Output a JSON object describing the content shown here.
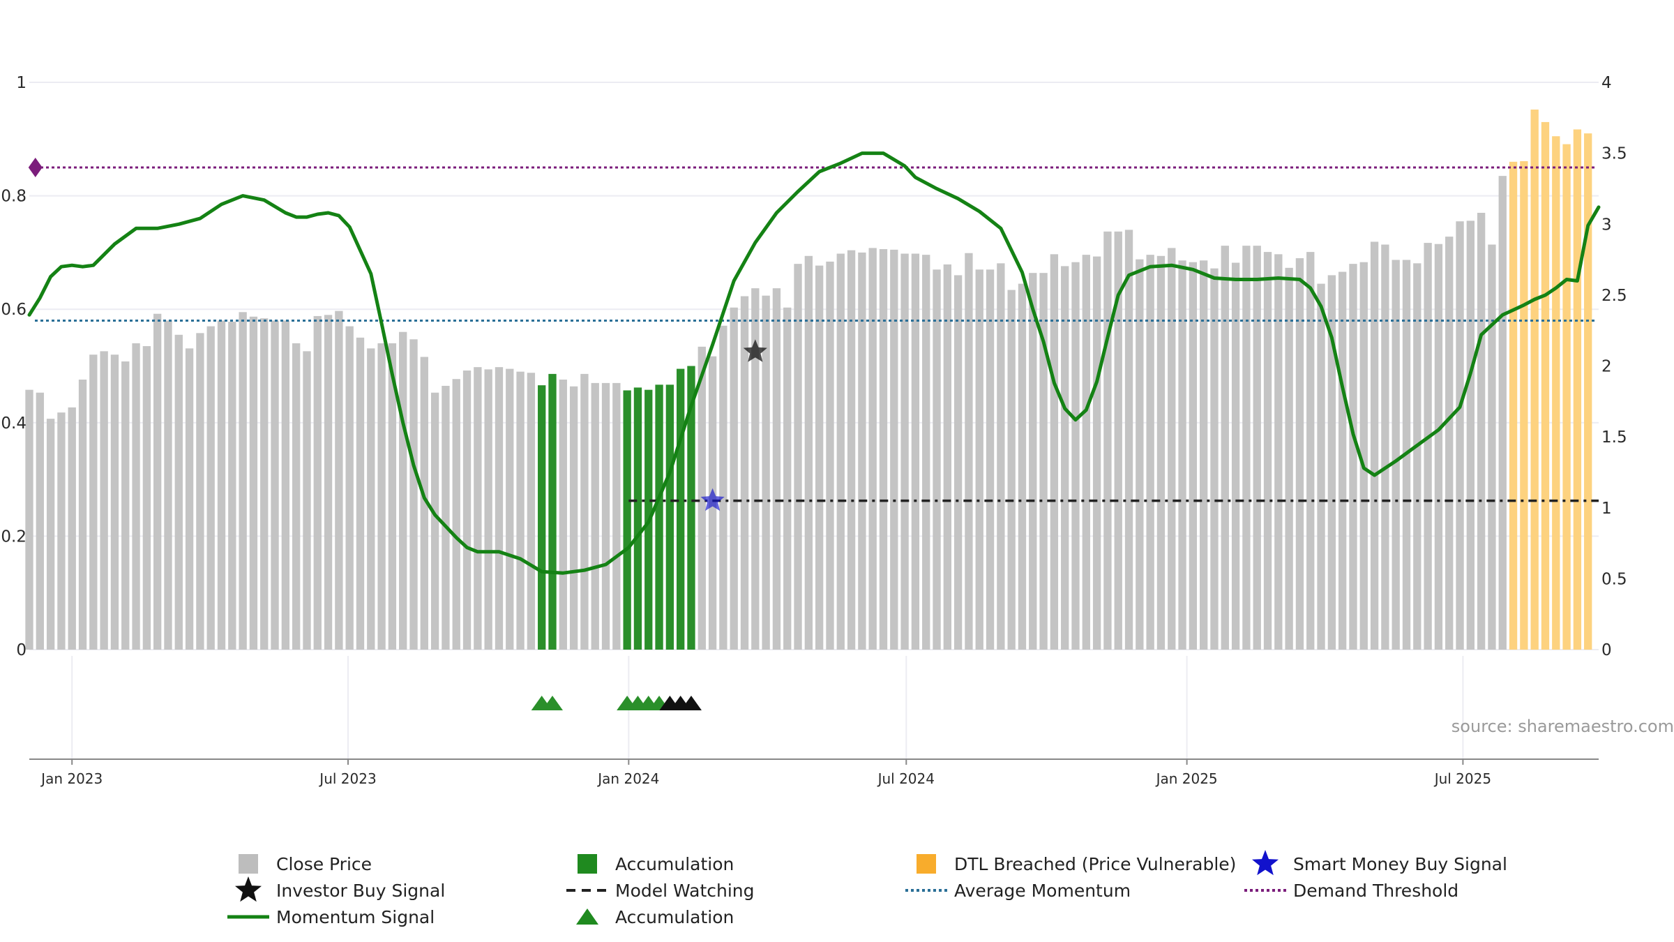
{
  "chart_data": {
    "type": "bar",
    "source": "source: sharemaestro.com",
    "colors": {
      "close_price": "#c4c4c4",
      "accumulation": "#2a8f2a",
      "dtl_breached": "#fdd27f",
      "momentum": "#148214",
      "average_momentum": "#2a6f97",
      "demand_threshold": "#7b1d7b",
      "model_watching": "#222222",
      "smart_money": "#1212cc",
      "investor": "#111111"
    },
    "y_left": {
      "ticks": [
        "0",
        "0.2",
        "0.4",
        "0.6",
        "0.8",
        "1"
      ],
      "ylim": [
        0,
        1
      ]
    },
    "y_right": {
      "ticks": [
        "0",
        "0.5",
        "1",
        "1.5",
        "2",
        "2.5",
        "3",
        "3.5",
        "4"
      ],
      "ylim": [
        0,
        4
      ]
    },
    "x_ticks": [
      {
        "label": "Jan 2023",
        "date": "2023-01-01"
      },
      {
        "label": "Jul 2023",
        "date": "2023-07-01"
      },
      {
        "label": "Jan 2024",
        "date": "2024-01-01"
      },
      {
        "label": "Jul 2024",
        "date": "2024-07-01"
      },
      {
        "label": "Jan 2025",
        "date": "2025-01-01"
      },
      {
        "label": "Jul 2025",
        "date": "2025-07-01"
      }
    ],
    "x_range": [
      "2022-12-04",
      "2025-09-28"
    ],
    "bars": {
      "start": "2022-12-04",
      "interval_days": 7,
      "values": [
        0.458,
        0.453,
        0.407,
        0.418,
        0.427,
        0.476,
        0.52,
        0.526,
        0.52,
        0.508,
        0.54,
        0.535,
        0.592,
        0.58,
        0.555,
        0.531,
        0.558,
        0.57,
        0.58,
        0.578,
        0.595,
        0.587,
        0.584,
        0.58,
        0.58,
        0.54,
        0.526,
        0.588,
        0.59,
        0.597,
        0.57,
        0.55,
        0.531,
        0.54,
        0.54,
        0.56,
        0.547,
        0.516,
        0.453,
        0.465,
        0.477,
        0.492,
        0.498,
        0.494,
        0.498,
        0.495,
        0.49,
        0.488,
        0.466,
        0.486,
        0.476,
        0.464,
        0.486,
        0.47,
        0.47,
        0.47,
        0.457,
        0.462,
        0.458,
        0.467,
        0.467,
        0.495,
        0.5,
        0.534,
        0.517,
        0.571,
        0.603,
        0.623,
        0.637,
        0.624,
        0.637,
        0.603,
        0.68,
        0.694,
        0.677,
        0.684,
        0.698,
        0.704,
        0.7,
        0.708,
        0.706,
        0.705,
        0.698,
        0.698,
        0.696,
        0.67,
        0.679,
        0.66,
        0.699,
        0.67,
        0.67,
        0.681,
        0.634,
        0.645,
        0.664,
        0.664,
        0.697,
        0.676,
        0.683,
        0.696,
        0.693,
        0.737,
        0.737,
        0.74,
        0.688,
        0.696,
        0.694,
        0.708,
        0.686,
        0.683,
        0.686,
        0.672,
        0.712,
        0.682,
        0.712,
        0.712,
        0.701,
        0.697,
        0.673,
        0.69,
        0.701,
        0.645,
        0.66,
        0.666,
        0.68,
        0.683,
        0.719,
        0.714,
        0.687,
        0.687,
        0.681,
        0.717,
        0.715,
        0.728,
        0.755,
        0.756,
        0.77,
        0.714,
        0.835,
        0.86,
        0.861,
        0.952,
        0.93,
        0.905,
        0.891,
        0.917,
        0.91
      ],
      "accumulation_indices": [
        48,
        49,
        56,
        57,
        58,
        59,
        60,
        61,
        62
      ],
      "dtl_breached_from_index": 139
    },
    "series": [
      {
        "name": "Momentum Signal",
        "axis": "right",
        "x": [
          "2022-12-04",
          "2022-12-11",
          "2022-12-18",
          "2022-12-25",
          "2023-01-01",
          "2023-01-08",
          "2023-01-15",
          "2023-01-29",
          "2023-02-12",
          "2023-02-26",
          "2023-03-12",
          "2023-03-26",
          "2023-04-09",
          "2023-04-23",
          "2023-05-07",
          "2023-05-21",
          "2023-05-28",
          "2023-06-04",
          "2023-06-11",
          "2023-06-18",
          "2023-06-25",
          "2023-07-02",
          "2023-07-16",
          "2023-07-23",
          "2023-07-30",
          "2023-08-06",
          "2023-08-13",
          "2023-08-20",
          "2023-08-27",
          "2023-09-03",
          "2023-09-10",
          "2023-09-17",
          "2023-09-24",
          "2023-10-01",
          "2023-10-08",
          "2023-10-22",
          "2023-11-05",
          "2023-11-19",
          "2023-12-03",
          "2023-12-17",
          "2024-01-01",
          "2024-01-14",
          "2024-01-28",
          "2024-02-11",
          "2024-02-25",
          "2024-03-10",
          "2024-03-24",
          "2024-04-07",
          "2024-04-21",
          "2024-05-05",
          "2024-05-19",
          "2024-06-02",
          "2024-06-16",
          "2024-06-30",
          "2024-07-07",
          "2024-07-21",
          "2024-08-04",
          "2024-08-18",
          "2024-09-01",
          "2024-09-15",
          "2024-09-22",
          "2024-09-29",
          "2024-10-06",
          "2024-10-13",
          "2024-10-20",
          "2024-10-27",
          "2024-11-03",
          "2024-11-10",
          "2024-11-17",
          "2024-11-24",
          "2024-12-08",
          "2024-12-22",
          "2025-01-05",
          "2025-01-19",
          "2025-02-02",
          "2025-02-16",
          "2025-03-02",
          "2025-03-16",
          "2025-03-23",
          "2025-03-30",
          "2025-04-06",
          "2025-04-13",
          "2025-04-20",
          "2025-04-27",
          "2025-05-04",
          "2025-05-18",
          "2025-06-01",
          "2025-06-15",
          "2025-06-29",
          "2025-07-06",
          "2025-07-13",
          "2025-07-27",
          "2025-08-10",
          "2025-08-17",
          "2025-08-24",
          "2025-08-31",
          "2025-09-07",
          "2025-09-14",
          "2025-09-21",
          "2025-09-28"
        ],
        "values": [
          2.36,
          2.48,
          2.63,
          2.7,
          2.71,
          2.7,
          2.71,
          2.86,
          2.97,
          2.97,
          3.0,
          3.04,
          3.14,
          3.2,
          3.17,
          3.08,
          3.05,
          3.05,
          3.07,
          3.08,
          3.06,
          2.98,
          2.65,
          2.3,
          1.94,
          1.6,
          1.3,
          1.07,
          0.95,
          0.87,
          0.79,
          0.72,
          0.69,
          0.69,
          0.69,
          0.64,
          0.55,
          0.54,
          0.56,
          0.6,
          0.72,
          0.9,
          1.25,
          1.72,
          2.15,
          2.6,
          2.87,
          3.08,
          3.23,
          3.37,
          3.43,
          3.5,
          3.5,
          3.41,
          3.33,
          3.25,
          3.18,
          3.09,
          2.97,
          2.66,
          2.4,
          2.17,
          1.88,
          1.7,
          1.62,
          1.69,
          1.89,
          2.2,
          2.5,
          2.64,
          2.7,
          2.71,
          2.68,
          2.62,
          2.61,
          2.61,
          2.62,
          2.61,
          2.55,
          2.42,
          2.2,
          1.85,
          1.52,
          1.28,
          1.23,
          1.33,
          1.44,
          1.55,
          1.71,
          1.95,
          2.22,
          2.36,
          2.43,
          2.47,
          2.5,
          2.55,
          2.61,
          2.6,
          2.99,
          3.12
        ]
      },
      {
        "name": "Average Momentum",
        "axis": "right",
        "value": 2.32
      },
      {
        "name": "Demand Threshold",
        "axis": "right",
        "value": 3.4
      },
      {
        "name": "Model Watching",
        "axis": "right",
        "value": 1.05,
        "from": "2024-01-01",
        "to": "2025-09-28"
      }
    ],
    "markers": {
      "investor_buy_signal": {
        "date": "2024-03-24",
        "value": 2.1
      },
      "smart_money_buy_signal": {
        "date": "2024-02-25",
        "value": 1.05
      },
      "demand_threshold_marker": {
        "date": "2022-12-08",
        "value": 3.4
      },
      "accumulation_triangles": [
        "2023-11-05",
        "2023-11-12",
        "2023-12-31",
        "2024-01-07",
        "2024-01-14",
        "2024-01-21"
      ],
      "investor_triangles": [
        "2024-01-28",
        "2024-02-04",
        "2024-02-11"
      ]
    },
    "legend": [
      {
        "label": "Close Price",
        "kind": "square",
        "color": "#bdbdbd"
      },
      {
        "label": "Accumulation",
        "kind": "square",
        "color": "#1f8a1f"
      },
      {
        "label": "DTL Breached (Price Vulnerable)",
        "kind": "square",
        "color": "#f8ac2c"
      },
      {
        "label": "Smart Money Buy Signal",
        "kind": "star",
        "color": "#1212cc"
      },
      {
        "label": "Investor Buy Signal",
        "kind": "star",
        "color": "#111111"
      },
      {
        "label": "Model Watching",
        "kind": "dash",
        "color": "#222222"
      },
      {
        "label": "Average Momentum",
        "kind": "dot",
        "color": "#2a6f97"
      },
      {
        "label": "Demand Threshold",
        "kind": "dot",
        "color": "#7b1d7b"
      },
      {
        "label": "Momentum Signal",
        "kind": "line",
        "color": "#148214"
      },
      {
        "label": "Accumulation",
        "kind": "triangle",
        "color": "#1f8a1f"
      }
    ]
  }
}
